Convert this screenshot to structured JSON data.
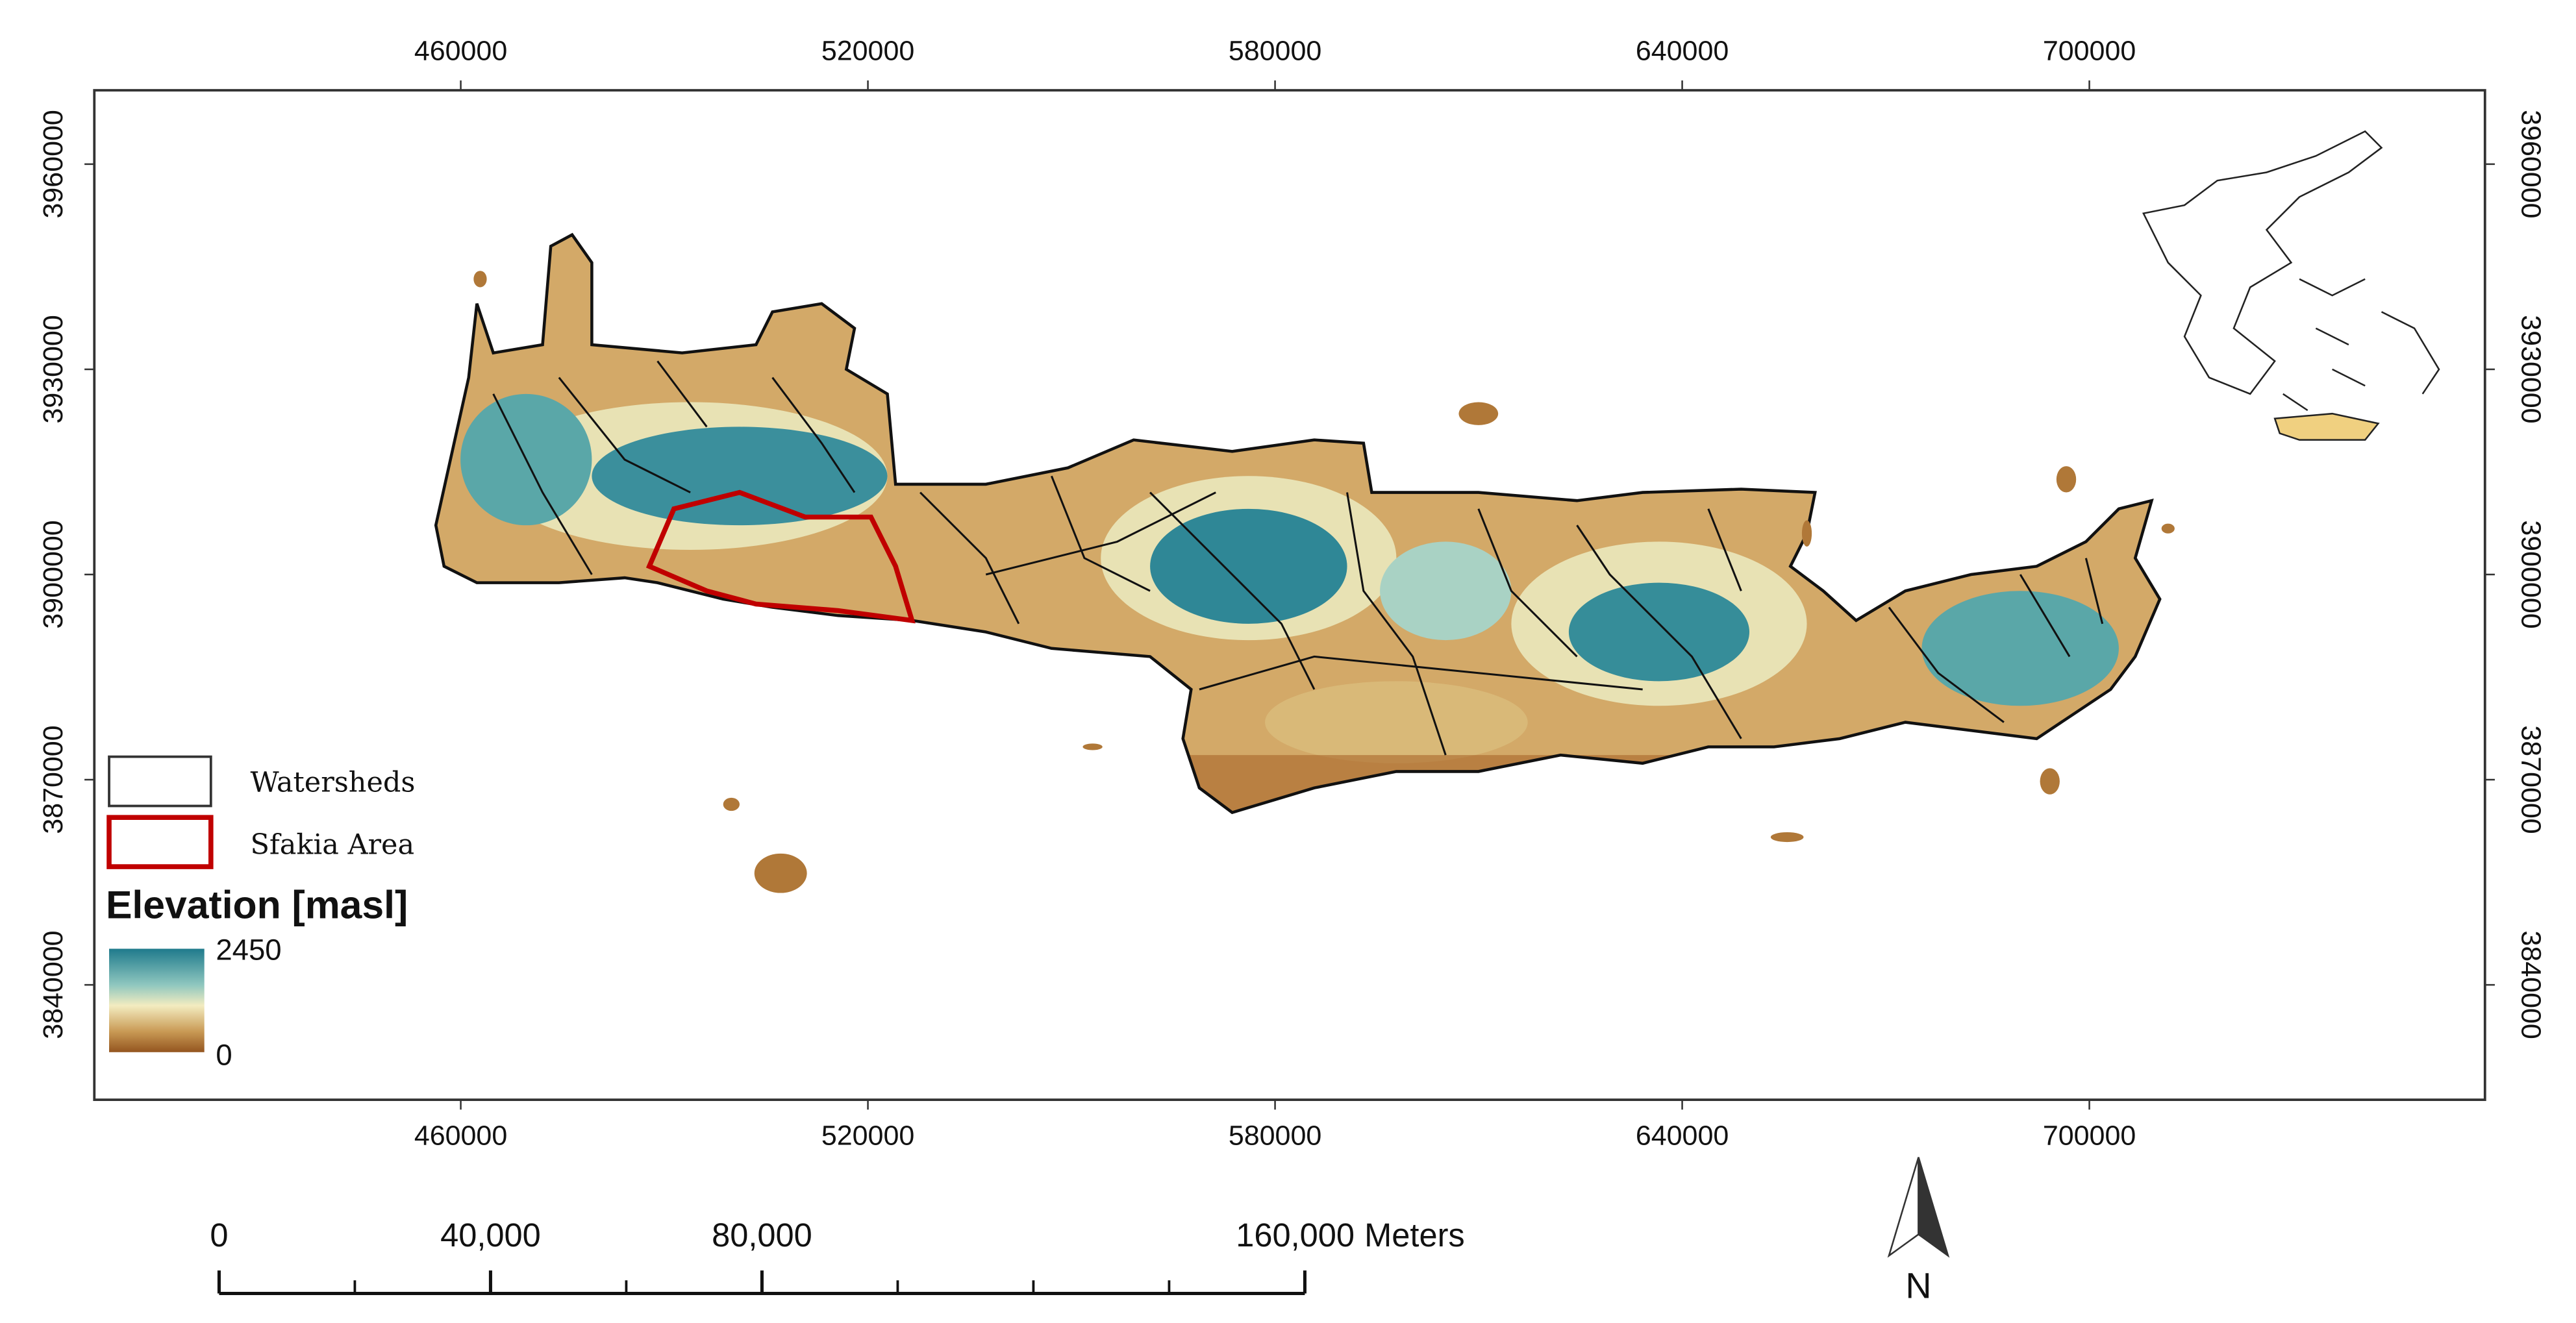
{
  "map": {
    "xlim": [
      406000,
      758300
    ],
    "ylim": [
      3823200,
      3970800
    ],
    "x_ticks": [
      460000,
      520000,
      580000,
      640000,
      700000
    ],
    "y_ticks": [
      3960000,
      3930000,
      3900000,
      3870000,
      3840000
    ]
  },
  "legend": {
    "watersheds": "Watersheds",
    "sfakia_area": "Sfakia Area",
    "elevation_title": "Elevation [masl]",
    "elevation_max": 2450,
    "elevation_min": 0
  },
  "scale_bar": {
    "ticks": [
      0,
      {
        "value": 40000,
        "label": "40,000"
      },
      {
        "value": 80000,
        "label": "80,000"
      },
      {
        "value": 160000,
        "label": "160,000"
      }
    ],
    "units": "Meters"
  },
  "north_arrow": "N"
}
